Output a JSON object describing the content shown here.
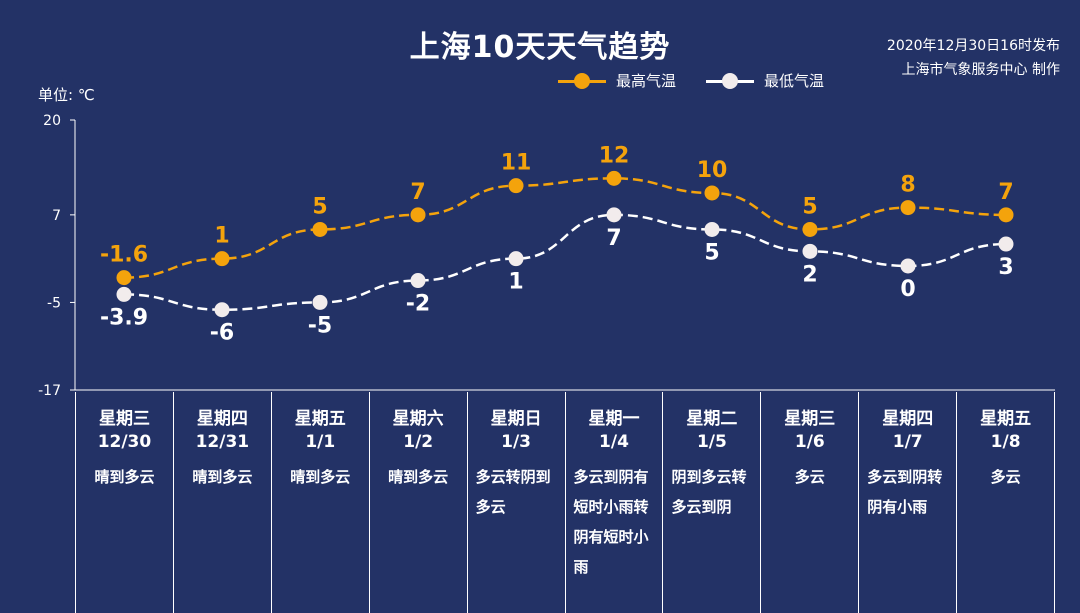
{
  "title": "上海10天天气趋势",
  "issue_line1": "2020年12月30日16时发布",
  "issue_line2": "上海市气象服务中心 制作",
  "unit": "单位: ℃",
  "legend": {
    "high": "最高气温",
    "low": "最低气温"
  },
  "colors": {
    "background": "#233266",
    "high": "#f4a30c",
    "low": "#ffffff"
  },
  "chart_data": {
    "type": "line",
    "title": "上海10天天气趋势",
    "ylabel": "单位: ℃",
    "ylim": [
      -17,
      20
    ],
    "yticks": [
      20,
      7,
      -5,
      -17
    ],
    "grid": false,
    "legend_position": "top-right",
    "categories": [
      "12/30",
      "12/31",
      "1/1",
      "1/2",
      "1/3",
      "1/4",
      "1/5",
      "1/6",
      "1/7",
      "1/8"
    ],
    "series": [
      {
        "name": "最高气温",
        "values": [
          -1.6,
          1,
          5,
          7,
          11,
          12,
          10,
          5,
          8,
          7
        ],
        "labels": [
          "-1.6",
          "1",
          "5",
          "7",
          "11",
          "12",
          "10",
          "5",
          "8",
          "7"
        ],
        "color": "#f4a30c"
      },
      {
        "name": "最低气温",
        "values": [
          -3.9,
          -6,
          -5,
          -2,
          1,
          7,
          5,
          2,
          0,
          3
        ],
        "labels": [
          "-3.9",
          "-6",
          "-5",
          "-2",
          "1",
          "7",
          "5",
          "2",
          "0",
          "3"
        ],
        "color": "#ffffff"
      }
    ]
  },
  "days": [
    {
      "weekday": "星期三",
      "date": "12/30",
      "weather": "晴到多云"
    },
    {
      "weekday": "星期四",
      "date": "12/31",
      "weather": "晴到多云"
    },
    {
      "weekday": "星期五",
      "date": "1/1",
      "weather": "晴到多云"
    },
    {
      "weekday": "星期六",
      "date": "1/2",
      "weather": "晴到多云"
    },
    {
      "weekday": "星期日",
      "date": "1/3",
      "weather": "多云转阴到多云"
    },
    {
      "weekday": "星期一",
      "date": "1/4",
      "weather": "多云到阴有短时小雨转阴有短时小雨"
    },
    {
      "weekday": "星期二",
      "date": "1/5",
      "weather": "阴到多云转多云到阴"
    },
    {
      "weekday": "星期三",
      "date": "1/6",
      "weather": "多云"
    },
    {
      "weekday": "星期四",
      "date": "1/7",
      "weather": "多云到阴转阴有小雨"
    },
    {
      "weekday": "星期五",
      "date": "1/8",
      "weather": "多云"
    }
  ]
}
